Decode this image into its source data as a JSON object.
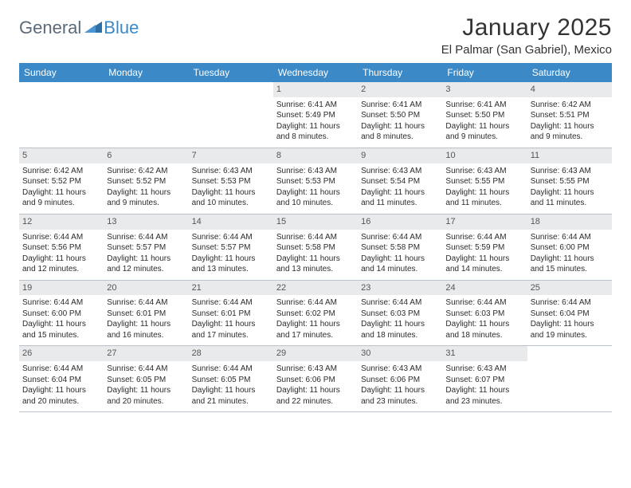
{
  "logo": {
    "part1": "General",
    "part2": "Blue"
  },
  "title": "January 2025",
  "location": "El Palmar (San Gabriel), Mexico",
  "weekdays": [
    "Sunday",
    "Monday",
    "Tuesday",
    "Wednesday",
    "Thursday",
    "Friday",
    "Saturday"
  ],
  "colors": {
    "header_bg": "#3b89c6",
    "header_text": "#ffffff",
    "daynum_bg": "#e8eaec",
    "border": "#b9c2ca",
    "body_text": "#2b2b2b",
    "logo_gray": "#5a6a78",
    "logo_blue": "#3b89c6",
    "page_bg": "#ffffff"
  },
  "typography": {
    "title_fontsize": 30,
    "location_fontsize": 15,
    "weekday_fontsize": 12,
    "daynum_fontsize": 11,
    "body_fontsize": 10
  },
  "weeks": [
    [
      {
        "n": "",
        "sr": "",
        "ss": "",
        "dl": ""
      },
      {
        "n": "",
        "sr": "",
        "ss": "",
        "dl": ""
      },
      {
        "n": "",
        "sr": "",
        "ss": "",
        "dl": ""
      },
      {
        "n": "1",
        "sr": "Sunrise: 6:41 AM",
        "ss": "Sunset: 5:49 PM",
        "dl": "Daylight: 11 hours and 8 minutes."
      },
      {
        "n": "2",
        "sr": "Sunrise: 6:41 AM",
        "ss": "Sunset: 5:50 PM",
        "dl": "Daylight: 11 hours and 8 minutes."
      },
      {
        "n": "3",
        "sr": "Sunrise: 6:41 AM",
        "ss": "Sunset: 5:50 PM",
        "dl": "Daylight: 11 hours and 9 minutes."
      },
      {
        "n": "4",
        "sr": "Sunrise: 6:42 AM",
        "ss": "Sunset: 5:51 PM",
        "dl": "Daylight: 11 hours and 9 minutes."
      }
    ],
    [
      {
        "n": "5",
        "sr": "Sunrise: 6:42 AM",
        "ss": "Sunset: 5:52 PM",
        "dl": "Daylight: 11 hours and 9 minutes."
      },
      {
        "n": "6",
        "sr": "Sunrise: 6:42 AM",
        "ss": "Sunset: 5:52 PM",
        "dl": "Daylight: 11 hours and 9 minutes."
      },
      {
        "n": "7",
        "sr": "Sunrise: 6:43 AM",
        "ss": "Sunset: 5:53 PM",
        "dl": "Daylight: 11 hours and 10 minutes."
      },
      {
        "n": "8",
        "sr": "Sunrise: 6:43 AM",
        "ss": "Sunset: 5:53 PM",
        "dl": "Daylight: 11 hours and 10 minutes."
      },
      {
        "n": "9",
        "sr": "Sunrise: 6:43 AM",
        "ss": "Sunset: 5:54 PM",
        "dl": "Daylight: 11 hours and 11 minutes."
      },
      {
        "n": "10",
        "sr": "Sunrise: 6:43 AM",
        "ss": "Sunset: 5:55 PM",
        "dl": "Daylight: 11 hours and 11 minutes."
      },
      {
        "n": "11",
        "sr": "Sunrise: 6:43 AM",
        "ss": "Sunset: 5:55 PM",
        "dl": "Daylight: 11 hours and 11 minutes."
      }
    ],
    [
      {
        "n": "12",
        "sr": "Sunrise: 6:44 AM",
        "ss": "Sunset: 5:56 PM",
        "dl": "Daylight: 11 hours and 12 minutes."
      },
      {
        "n": "13",
        "sr": "Sunrise: 6:44 AM",
        "ss": "Sunset: 5:57 PM",
        "dl": "Daylight: 11 hours and 12 minutes."
      },
      {
        "n": "14",
        "sr": "Sunrise: 6:44 AM",
        "ss": "Sunset: 5:57 PM",
        "dl": "Daylight: 11 hours and 13 minutes."
      },
      {
        "n": "15",
        "sr": "Sunrise: 6:44 AM",
        "ss": "Sunset: 5:58 PM",
        "dl": "Daylight: 11 hours and 13 minutes."
      },
      {
        "n": "16",
        "sr": "Sunrise: 6:44 AM",
        "ss": "Sunset: 5:58 PM",
        "dl": "Daylight: 11 hours and 14 minutes."
      },
      {
        "n": "17",
        "sr": "Sunrise: 6:44 AM",
        "ss": "Sunset: 5:59 PM",
        "dl": "Daylight: 11 hours and 14 minutes."
      },
      {
        "n": "18",
        "sr": "Sunrise: 6:44 AM",
        "ss": "Sunset: 6:00 PM",
        "dl": "Daylight: 11 hours and 15 minutes."
      }
    ],
    [
      {
        "n": "19",
        "sr": "Sunrise: 6:44 AM",
        "ss": "Sunset: 6:00 PM",
        "dl": "Daylight: 11 hours and 15 minutes."
      },
      {
        "n": "20",
        "sr": "Sunrise: 6:44 AM",
        "ss": "Sunset: 6:01 PM",
        "dl": "Daylight: 11 hours and 16 minutes."
      },
      {
        "n": "21",
        "sr": "Sunrise: 6:44 AM",
        "ss": "Sunset: 6:01 PM",
        "dl": "Daylight: 11 hours and 17 minutes."
      },
      {
        "n": "22",
        "sr": "Sunrise: 6:44 AM",
        "ss": "Sunset: 6:02 PM",
        "dl": "Daylight: 11 hours and 17 minutes."
      },
      {
        "n": "23",
        "sr": "Sunrise: 6:44 AM",
        "ss": "Sunset: 6:03 PM",
        "dl": "Daylight: 11 hours and 18 minutes."
      },
      {
        "n": "24",
        "sr": "Sunrise: 6:44 AM",
        "ss": "Sunset: 6:03 PM",
        "dl": "Daylight: 11 hours and 18 minutes."
      },
      {
        "n": "25",
        "sr": "Sunrise: 6:44 AM",
        "ss": "Sunset: 6:04 PM",
        "dl": "Daylight: 11 hours and 19 minutes."
      }
    ],
    [
      {
        "n": "26",
        "sr": "Sunrise: 6:44 AM",
        "ss": "Sunset: 6:04 PM",
        "dl": "Daylight: 11 hours and 20 minutes."
      },
      {
        "n": "27",
        "sr": "Sunrise: 6:44 AM",
        "ss": "Sunset: 6:05 PM",
        "dl": "Daylight: 11 hours and 20 minutes."
      },
      {
        "n": "28",
        "sr": "Sunrise: 6:44 AM",
        "ss": "Sunset: 6:05 PM",
        "dl": "Daylight: 11 hours and 21 minutes."
      },
      {
        "n": "29",
        "sr": "Sunrise: 6:43 AM",
        "ss": "Sunset: 6:06 PM",
        "dl": "Daylight: 11 hours and 22 minutes."
      },
      {
        "n": "30",
        "sr": "Sunrise: 6:43 AM",
        "ss": "Sunset: 6:06 PM",
        "dl": "Daylight: 11 hours and 23 minutes."
      },
      {
        "n": "31",
        "sr": "Sunrise: 6:43 AM",
        "ss": "Sunset: 6:07 PM",
        "dl": "Daylight: 11 hours and 23 minutes."
      },
      {
        "n": "",
        "sr": "",
        "ss": "",
        "dl": ""
      }
    ]
  ]
}
